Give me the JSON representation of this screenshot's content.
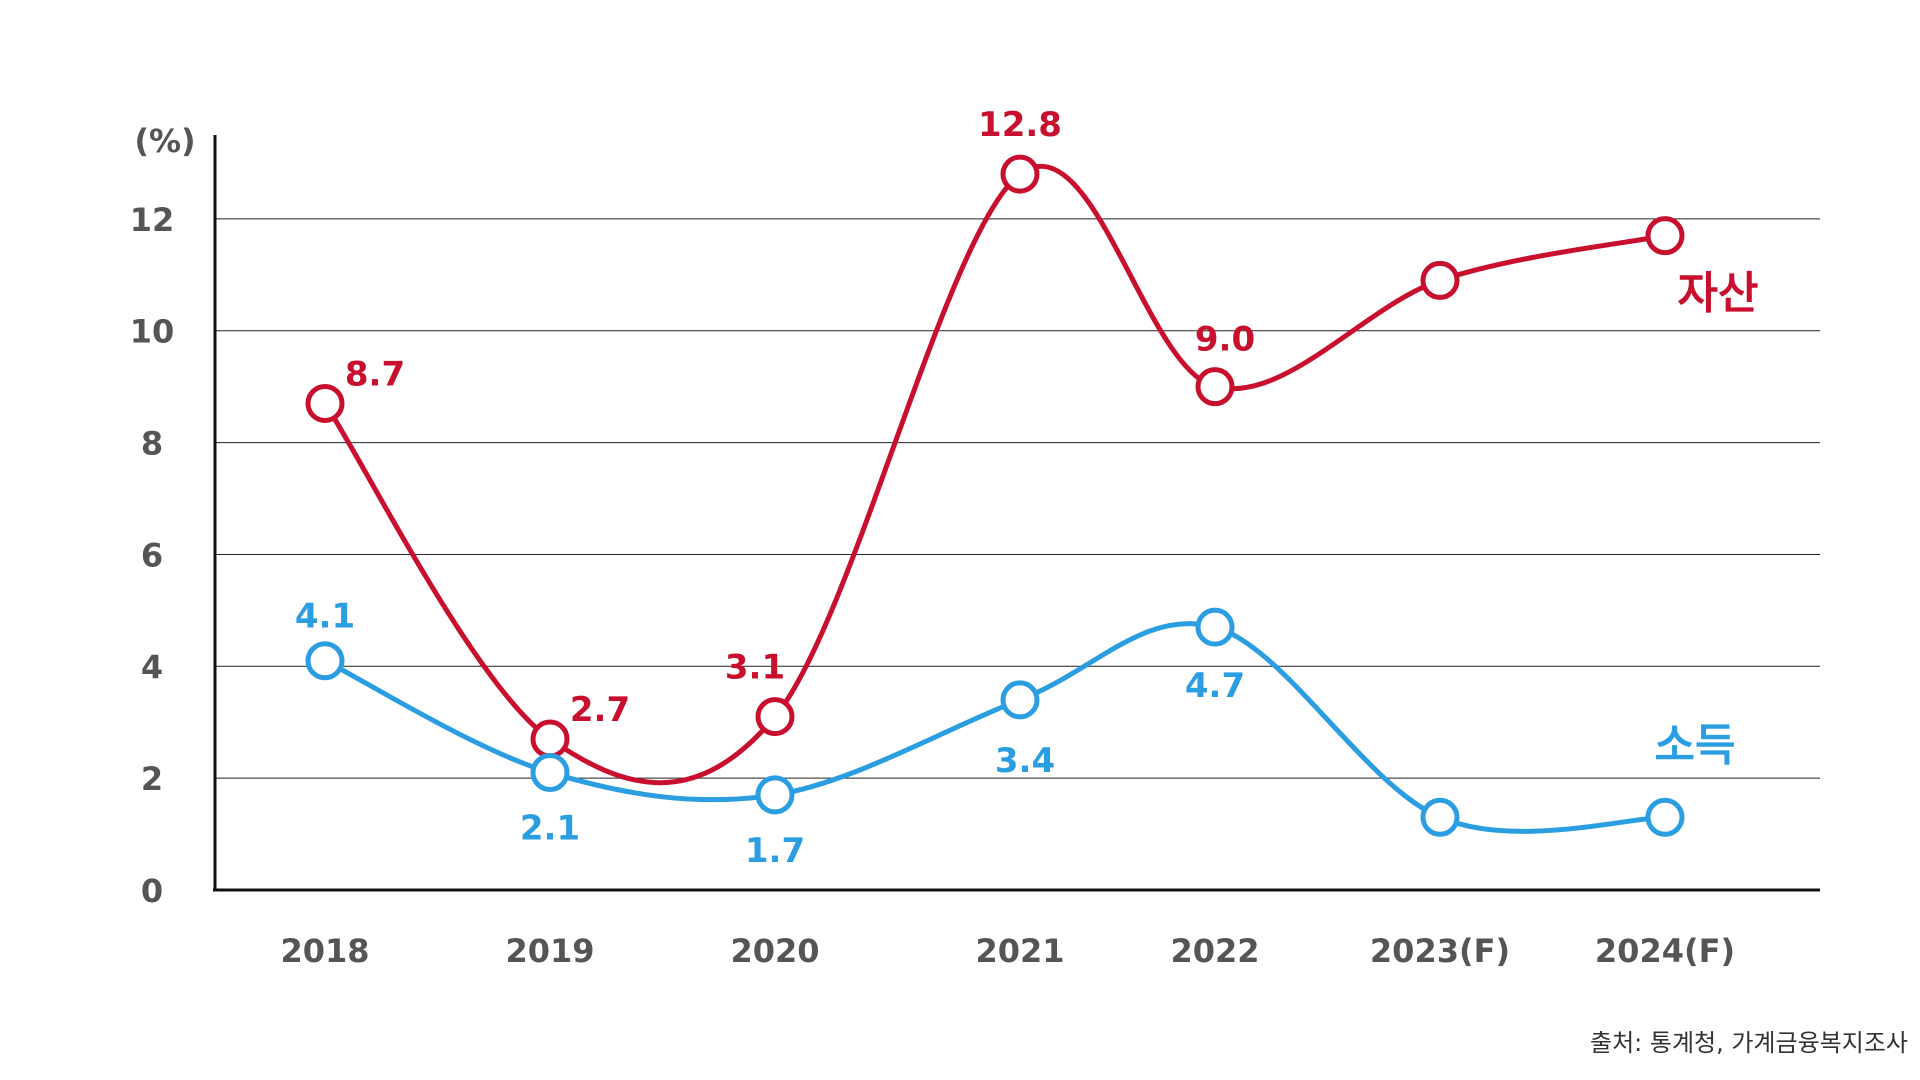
{
  "chart_data": {
    "type": "line",
    "y_unit": "(%)",
    "ylim": [
      0,
      13.5
    ],
    "y_ticks": [
      0,
      2,
      4,
      6,
      8,
      10,
      12
    ],
    "grid": true,
    "categories": [
      "2018",
      "2019",
      "2020",
      "2021",
      "2022",
      "2023(F)",
      "2024(F)"
    ],
    "series": [
      {
        "name": "자산",
        "color": "#c8102e",
        "values": [
          8.7,
          2.7,
          3.1,
          12.8,
          9.0,
          10.9,
          11.7
        ],
        "labels": [
          "8.7",
          "2.7",
          "3.1",
          "12.8",
          "9.0",
          "",
          ""
        ]
      },
      {
        "name": "소득",
        "color": "#2a9ee0",
        "values": [
          4.1,
          2.1,
          1.7,
          3.4,
          4.7,
          1.3,
          1.3
        ],
        "labels": [
          "4.1",
          "2.1",
          "1.7",
          "3.4",
          "4.7",
          "",
          ""
        ]
      }
    ],
    "source": "출처: 통계청, 가계금융복지조사"
  }
}
